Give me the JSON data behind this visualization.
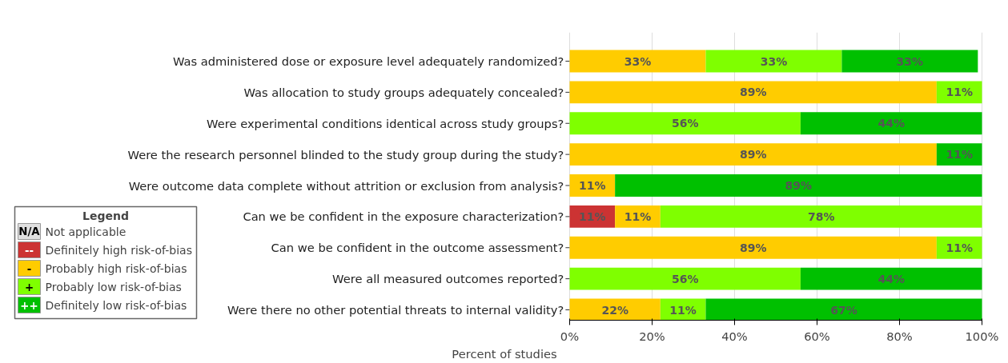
{
  "chart_data": {
    "type": "bar",
    "orientation": "horizontal",
    "stacked": true,
    "xlabel": "Percent of studies",
    "categories": [
      "Was administered dose or exposure level adequately randomized?",
      "Was allocation to study groups adequately concealed?",
      "Were experimental conditions identical across study groups?",
      "Were the research personnel blinded to the study group during the study?",
      "Were outcome data complete without attrition or exclusion from analysis?",
      "Can we be confident in the exposure characterization?",
      "Can we be confident in the outcome assessment?",
      "Were all measured outcomes reported?",
      "Were there no other potential threats to internal validity?"
    ],
    "series": [
      {
        "name": "Not applicable",
        "color": "#e0e0e0",
        "values": [
          0,
          0,
          0,
          0,
          0,
          0,
          0,
          0,
          0
        ],
        "value_labels": [
          null,
          null,
          null,
          null,
          null,
          null,
          null,
          null,
          null
        ]
      },
      {
        "name": "Definitely high risk-of-bias",
        "color": "#cc3333",
        "values": [
          0,
          0,
          0,
          0,
          0,
          11,
          0,
          0,
          0
        ],
        "value_labels": [
          null,
          null,
          null,
          null,
          null,
          "11%",
          null,
          null,
          null
        ]
      },
      {
        "name": "Probably high risk-of-bias",
        "color": "#ffcc00",
        "values": [
          33,
          89,
          0,
          89,
          11,
          11,
          89,
          0,
          22
        ],
        "value_labels": [
          "33%",
          "89%",
          null,
          "89%",
          "11%",
          "11%",
          "89%",
          null,
          "22%"
        ]
      },
      {
        "name": "Probably low risk-of-bias",
        "color": "#7fff00",
        "values": [
          33,
          11,
          56,
          0,
          0,
          78,
          11,
          56,
          11
        ],
        "value_labels": [
          "33%",
          "11%",
          "56%",
          null,
          null,
          "78%",
          "11%",
          "56%",
          "11%"
        ]
      },
      {
        "name": "Definitely low risk-of-bias",
        "color": "#00c000",
        "values": [
          33,
          0,
          44,
          11,
          89,
          0,
          0,
          44,
          67
        ],
        "value_labels": [
          "33%",
          null,
          "44%",
          "11%",
          "89%",
          null,
          null,
          "44%",
          "67%"
        ]
      }
    ],
    "legend_title": "Legend",
    "annotations": [
      "N/A",
      "--",
      "-",
      "+",
      "++"
    ],
    "xlim": [
      0,
      100
    ],
    "xticks": [
      {
        "value": 0,
        "label": "0%"
      },
      {
        "value": 20,
        "label": "20%"
      },
      {
        "value": 40,
        "label": "40%"
      },
      {
        "value": 60,
        "label": "60%"
      },
      {
        "value": 80,
        "label": "80%"
      },
      {
        "value": 100,
        "label": "100%"
      }
    ],
    "grid": "x",
    "legend": "bottom left"
  }
}
